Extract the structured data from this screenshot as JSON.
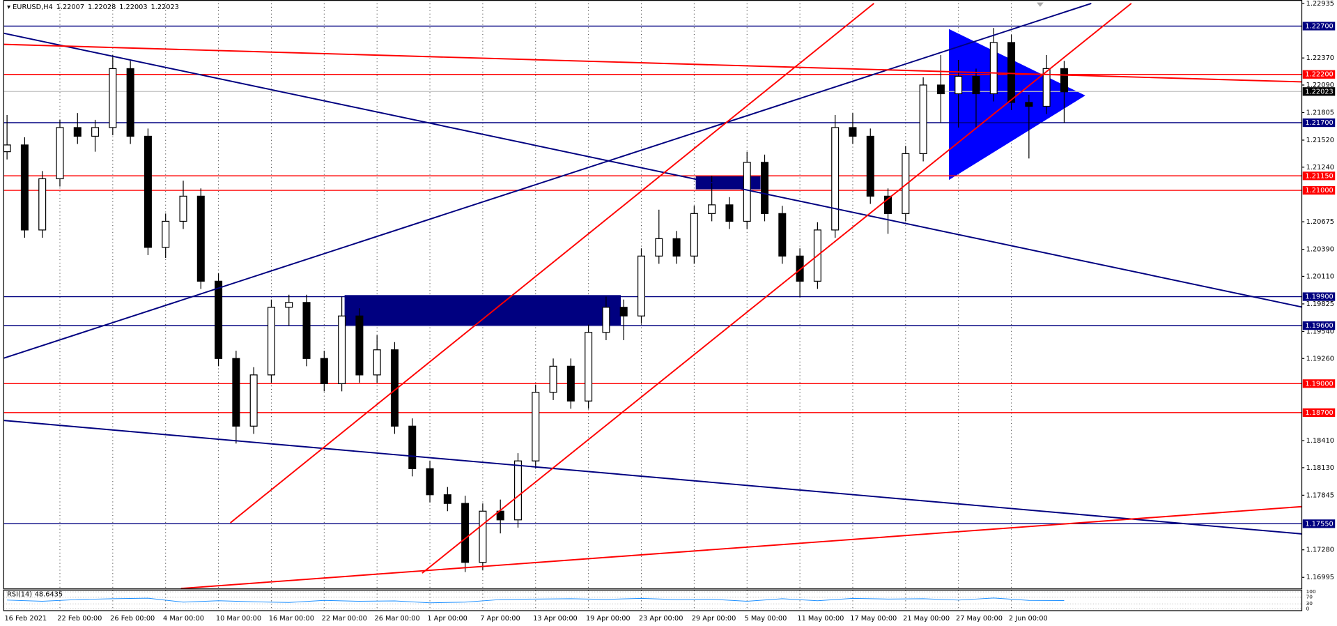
{
  "chart_data": {
    "type": "candlestick",
    "symbol": "EURUSD,H4",
    "ohlc": [
      1.22007,
      1.22028,
      1.22003,
      1.22023
    ],
    "ylim": [
      1.1688,
      1.2297
    ],
    "yticks": [
      1.22935,
      {
        "value": 1.2237,
        "label": "1.22370"
      },
      {
        "value": 1.2209,
        "label": "1.22090"
      },
      1.21805,
      {
        "value": 1.2152,
        "label": "1.21520"
      },
      {
        "value": 1.2124,
        "label": "1.21240"
      },
      1.20675,
      {
        "value": 1.2039,
        "label": "1.20390"
      },
      {
        "value": 1.2011,
        "label": "1.20110"
      },
      1.19825,
      {
        "value": 1.1954,
        "label": "1.19540"
      },
      {
        "value": 1.1926,
        "label": "1.19260"
      },
      {
        "value": 1.1841,
        "label": "1.18410"
      },
      {
        "value": 1.1813,
        "label": "1.18130"
      },
      1.17845,
      {
        "value": 1.1728,
        "label": "1.17280"
      },
      1.16995
    ],
    "xticks": [
      {
        "value": 0,
        "label": "16 Feb 2021"
      },
      {
        "value": 3,
        "label": "22 Feb 00:00"
      },
      {
        "value": 6,
        "label": "26 Feb 00:00"
      },
      {
        "value": 9,
        "label": "4 Mar 00:00"
      },
      {
        "value": 12,
        "label": "10 Mar 00:00"
      },
      {
        "value": 15,
        "label": "16 Mar 00:00"
      },
      {
        "value": 18,
        "label": "22 Mar 00:00"
      },
      {
        "value": 21,
        "label": "26 Mar 00:00"
      },
      {
        "value": 24,
        "label": "1 Apr 00:00"
      },
      {
        "value": 27,
        "label": "7 Apr 00:00"
      },
      {
        "value": 30,
        "label": "13 Apr 00:00"
      },
      {
        "value": 33,
        "label": "19 Apr 00:00"
      },
      {
        "value": 36,
        "label": "23 Apr 00:00"
      },
      {
        "value": 39,
        "label": "29 Apr 00:00"
      },
      {
        "value": 42,
        "label": "5 May 00:00"
      },
      {
        "value": 45,
        "label": "11 May 00:00"
      },
      {
        "value": 48,
        "label": "17 May 00:00"
      },
      {
        "value": 51,
        "label": "21 May 00:00"
      },
      {
        "value": 54,
        "label": "27 May 00:00"
      },
      {
        "value": 57,
        "label": "2 Jun 00:00"
      }
    ],
    "levels": [
      {
        "value": 1.227,
        "label": "1.22700",
        "color": "#000080"
      },
      {
        "value": 1.222,
        "label": "1.22200",
        "color": "#ff0000"
      },
      {
        "value": 1.217,
        "label": "1.21700",
        "color": "#000080"
      },
      {
        "value": 1.2115,
        "label": "1.21150",
        "color": "#ff0000"
      },
      {
        "value": 1.21,
        "label": "1.21000",
        "color": "#ff0000"
      },
      {
        "value": 1.199,
        "label": "1.19900",
        "color": "#000080"
      },
      {
        "value": 1.196,
        "label": "1.19600",
        "color": "#000080"
      },
      {
        "value": 1.19,
        "label": "1.19000",
        "color": "#ff0000"
      },
      {
        "value": 1.187,
        "label": "1.18700",
        "color": "#ff0000"
      },
      {
        "value": 1.1755,
        "label": "1.17550",
        "color": "#000080"
      }
    ],
    "candles": [
      [
        1.214,
        1.2178,
        1.2132,
        1.2147
      ],
      [
        1.2147,
        1.2155,
        1.2051,
        1.2059
      ],
      [
        1.2059,
        1.212,
        1.2051,
        1.2112
      ],
      [
        1.2112,
        1.2173,
        1.2104,
        1.2165
      ],
      [
        1.2165,
        1.218,
        1.2148,
        1.2156
      ],
      [
        1.2156,
        1.2173,
        1.214,
        1.2165
      ],
      [
        1.2165,
        1.224,
        1.2157,
        1.2226
      ],
      [
        1.2226,
        1.2234,
        1.2148,
        1.2156
      ],
      [
        1.2156,
        1.2164,
        1.2033,
        1.2041
      ],
      [
        1.2041,
        1.2076,
        1.203,
        1.2068
      ],
      [
        1.2068,
        1.211,
        1.206,
        1.2094
      ],
      [
        1.2094,
        1.2102,
        1.1998,
        1.2006
      ],
      [
        1.2006,
        1.2014,
        1.1918,
        1.1926
      ],
      [
        1.1926,
        1.1934,
        1.1838,
        1.1856
      ],
      [
        1.1856,
        1.1917,
        1.1848,
        1.1909
      ],
      [
        1.1909,
        1.1987,
        1.1901,
        1.1979
      ],
      [
        1.1979,
        1.1992,
        1.196,
        1.1984
      ],
      [
        1.1984,
        1.1992,
        1.1918,
        1.1926
      ],
      [
        1.1926,
        1.1934,
        1.1892,
        1.19
      ],
      [
        1.19,
        1.199,
        1.1892,
        1.197
      ],
      [
        1.197,
        1.1978,
        1.1901,
        1.1909
      ],
      [
        1.1909,
        1.195,
        1.1901,
        1.1935
      ],
      [
        1.1935,
        1.1943,
        1.1848,
        1.1856
      ],
      [
        1.1856,
        1.1864,
        1.1804,
        1.1812
      ],
      [
        1.1812,
        1.182,
        1.1777,
        1.1785
      ],
      [
        1.1785,
        1.1793,
        1.1768,
        1.1776
      ],
      [
        1.1776,
        1.1784,
        1.1705,
        1.1715
      ],
      [
        1.1715,
        1.1776,
        1.1707,
        1.1768
      ],
      [
        1.1768,
        1.178,
        1.1745,
        1.1759
      ],
      [
        1.1759,
        1.1828,
        1.1751,
        1.182
      ],
      [
        1.182,
        1.1899,
        1.1812,
        1.1891
      ],
      [
        1.1891,
        1.1926,
        1.1883,
        1.1918
      ],
      [
        1.1918,
        1.1926,
        1.1874,
        1.1882
      ],
      [
        1.1882,
        1.1961,
        1.1874,
        1.1953
      ],
      [
        1.1953,
        1.199,
        1.1945,
        1.1979
      ],
      [
        1.1979,
        1.1987,
        1.1945,
        1.197
      ],
      [
        1.197,
        1.204,
        1.1962,
        1.2032
      ],
      [
        1.2032,
        1.208,
        1.2024,
        1.205
      ],
      [
        1.205,
        1.2058,
        1.2024,
        1.2032
      ],
      [
        1.2032,
        1.2084,
        1.2024,
        1.2076
      ],
      [
        1.2076,
        1.2115,
        1.2068,
        1.2085
      ],
      [
        1.2085,
        1.2093,
        1.206,
        1.2068
      ],
      [
        1.2068,
        1.214,
        1.206,
        1.2129
      ],
      [
        1.2129,
        1.2137,
        1.2068,
        1.2076
      ],
      [
        1.2076,
        1.2084,
        1.2024,
        1.2032
      ],
      [
        1.2032,
        1.204,
        1.199,
        1.2006
      ],
      [
        1.2006,
        1.2067,
        1.1998,
        1.2059
      ],
      [
        1.2059,
        1.2178,
        1.2051,
        1.2165
      ],
      [
        1.2165,
        1.218,
        1.2148,
        1.2156
      ],
      [
        1.2156,
        1.2164,
        1.2086,
        1.2094
      ],
      [
        1.2094,
        1.2102,
        1.2055,
        1.2076
      ],
      [
        1.2076,
        1.2146,
        1.2068,
        1.2138
      ],
      [
        1.2138,
        1.2217,
        1.213,
        1.2209
      ],
      [
        1.2209,
        1.224,
        1.217,
        1.22
      ],
      [
        1.22,
        1.2235,
        1.2165,
        1.2218
      ],
      [
        1.2218,
        1.2226,
        1.2165,
        1.22
      ],
      [
        1.22,
        1.2268,
        1.2192,
        1.2253
      ],
      [
        1.2253,
        1.2261,
        1.2183,
        1.2191
      ],
      [
        1.2191,
        1.2199,
        1.2133,
        1.2187
      ],
      [
        1.2187,
        1.224,
        1.2179,
        1.2226
      ],
      [
        1.2226,
        1.2234,
        1.217,
        1.2202
      ]
    ],
    "rsi_title": "RSI(14)",
    "rsi_value": 48.6435,
    "rsi_ylim": [
      0,
      100
    ],
    "rsi_yticks": [
      100,
      70,
      30,
      0
    ],
    "rsi_values": [
      52,
      45,
      55,
      60,
      63,
      40,
      48,
      42,
      38,
      50,
      45,
      47,
      36,
      40,
      55,
      58,
      60,
      56,
      62,
      55,
      57,
      45,
      60,
      48,
      62,
      58,
      60,
      52,
      64,
      50,
      49
    ]
  }
}
